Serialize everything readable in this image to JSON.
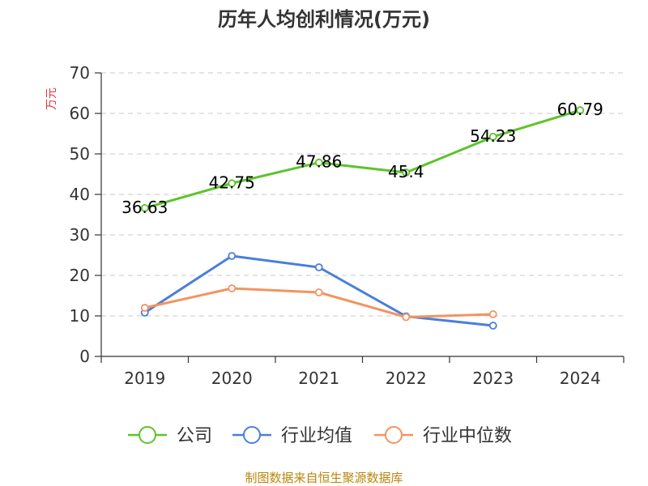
{
  "chart_data": {
    "type": "line",
    "title": "历年人均创利情况(万元)",
    "ylabel": "万元",
    "xlabel": "",
    "categories": [
      "2019",
      "2020",
      "2021",
      "2022",
      "2023",
      "2024"
    ],
    "ylim": [
      0,
      70
    ],
    "yticks": [
      0,
      10,
      20,
      30,
      40,
      50,
      60,
      70
    ],
    "grid": true,
    "legend_position": "bottom",
    "series": [
      {
        "name": "公司",
        "color": "#5cc42b",
        "values": [
          36.63,
          42.75,
          47.86,
          45.4,
          54.23,
          60.79
        ],
        "labels": [
          "36.63",
          "42.75",
          "47.86",
          "45.4",
          "54.23",
          "60.79"
        ]
      },
      {
        "name": "行业均值",
        "color": "#4a7fd9",
        "values": [
          10.8,
          24.8,
          22.0,
          9.9,
          7.6,
          null
        ]
      },
      {
        "name": "行业中位数",
        "color": "#f29461",
        "values": [
          12.0,
          16.8,
          15.8,
          9.7,
          10.4,
          null
        ]
      }
    ]
  },
  "source": "制图数据来自恒生聚源数据库"
}
